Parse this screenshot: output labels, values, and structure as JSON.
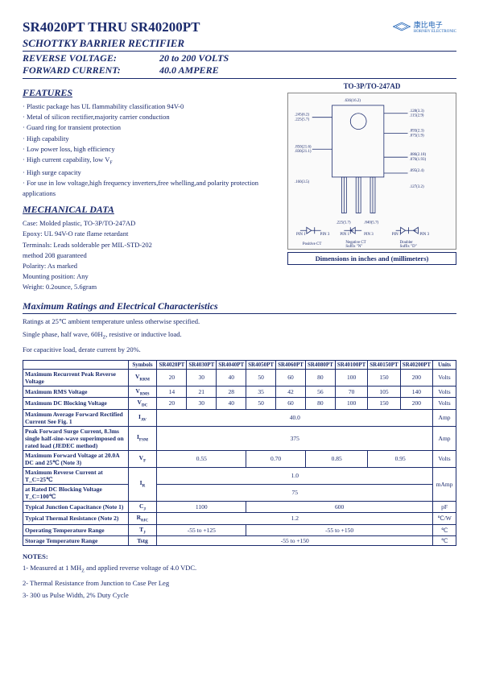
{
  "header": {
    "title": "SR4020PT THRU SR40200PT",
    "subtitle": "SCHOTTKY BARRIER RECTIFIER",
    "reverse_voltage_label": "REVERSE VOLTAGE:",
    "reverse_voltage_value": "20 to 200 VOLTS",
    "forward_current_label": "FORWARD CURRENT:",
    "forward_current_value": "40.0 AMPERE",
    "brand_cn": "康比电子",
    "brand_en": "HORNBY ELECTRONIC"
  },
  "features": {
    "heading": "FEATURES",
    "items": [
      "Plastic package has UL flammability classification 94V-0",
      "Metal of silicon rectifier,majority carrier conduction",
      "Guard ring for transient protection",
      "High capability",
      "Low power loss, high efficiency",
      "High current capability, low V",
      "High surge capacity",
      "For use in low voltage,high frequency inverters,free whelling,and polarity protection applications"
    ]
  },
  "mechanical": {
    "heading": "MECHANICAL DATA",
    "lines": [
      "Case: Molded plastic, TO-3P/TO-247AD",
      "Epoxy: UL 94V-O rate flame retardant",
      "Terminals: Leads solderable per MIL-STD-202",
      "method 208 guaranteed",
      "Polarity: As marked",
      "Mounting position: Any",
      "Weight: 0.2ounce, 5.6gram"
    ]
  },
  "package": {
    "label": "TO-3P/TO-247AD",
    "caption": "Dimensions in inches and (millimeters)"
  },
  "ratings": {
    "heading": "Maximum Ratings and Electrical Characteristics",
    "conditions": [
      "Ratings at 25℃ ambient temperature unless otherwise specified.",
      "Single phase, half wave, 60Hz, resistive or inductive load.",
      "For capacitive load, derate current by 20%."
    ],
    "col_symbols": "Symbols",
    "col_units": "Units",
    "parts": [
      "SR4020PT",
      "SR4030PT",
      "SR4040PT",
      "SR4050PT",
      "SR4060PT",
      "SR4080PT",
      "SR40100PT",
      "SR40150PT",
      "SR40200PT"
    ],
    "rows": [
      {
        "param": "Maximum Recurrent Peak Reverse Voltage",
        "sym": "V_RRM",
        "vals": [
          "20",
          "30",
          "40",
          "50",
          "60",
          "80",
          "100",
          "150",
          "200"
        ],
        "unit": "Volts"
      },
      {
        "param": "Maximum RMS Voltage",
        "sym": "V_RMS",
        "vals": [
          "14",
          "21",
          "28",
          "35",
          "42",
          "56",
          "70",
          "105",
          "140"
        ],
        "unit": "Volts"
      },
      {
        "param": "Maximum DC Blocking Voltage",
        "sym": "V_DC",
        "vals": [
          "20",
          "30",
          "40",
          "50",
          "60",
          "80",
          "100",
          "150",
          "200"
        ],
        "unit": "Volts"
      },
      {
        "param": "Maximum Average Forward Rectified Current See Fig. 1",
        "sym": "I_(AV)",
        "span": "40.0",
        "unit": "Amp"
      },
      {
        "param": "Peak Forward Surge Current, 8.3ms single half-sine-wave superimposed on rated load (JEDEC method)",
        "sym": "I_FSM",
        "span": "375",
        "unit": "Amp"
      },
      {
        "param": "Maximum Forward Voltage at 20.0A DC and 25℃ (Note 3)",
        "sym": "V_F",
        "groups": [
          "0.55",
          "0.70",
          "0.85",
          "0.95"
        ],
        "groupspans": [
          3,
          2,
          2,
          2
        ],
        "unit": "Volts"
      },
      {
        "param": "Maximum Reverse Current      at T_C=25℃",
        "param2": "at Rated DC Blocking Voltage      T_C=100℃",
        "sym": "I_R",
        "span": "1.0",
        "span2": "75",
        "unit": "mAmp"
      },
      {
        "param": "Typical Junction Capacitance (Note 1)",
        "sym": "C_J",
        "groups": [
          "1100",
          "600"
        ],
        "groupspans": [
          3,
          6
        ],
        "unit": "pF"
      },
      {
        "param": "Typical Thermal Resistance (Note 2)",
        "sym": "R_θJC",
        "span": "1.2",
        "unit": "℃/W"
      },
      {
        "param": "Operating Temperature Range",
        "sym": "T_J",
        "groups": [
          "-55 to +125",
          "-55 to +150"
        ],
        "groupspans": [
          3,
          6
        ],
        "unit": "℃"
      },
      {
        "param": "Storage Temperature Range",
        "sym": "Tstg",
        "span": "-55 to +150",
        "unit": "℃"
      }
    ]
  },
  "notes": {
    "heading": "NOTES:",
    "items": [
      "1- Measured at 1 MHz and applied reverse voltage of 4.0 VDC.",
      "2- Thermal Resistance from Junction to Case Per Leg",
      "3- 300 us Pulse Width, 2% Duty Cycle"
    ]
  }
}
